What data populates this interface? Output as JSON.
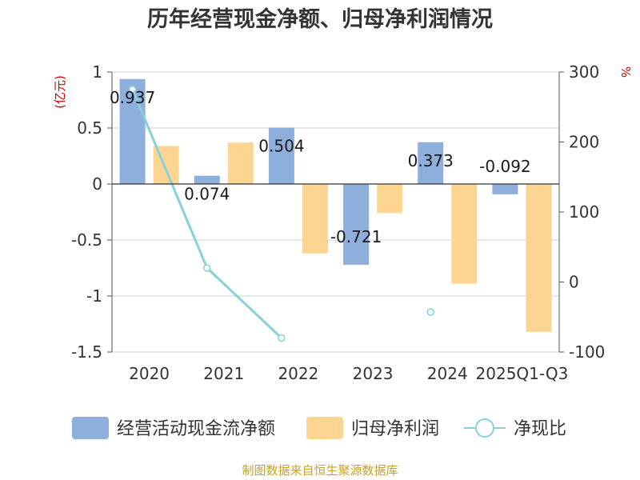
{
  "chart_data": {
    "type": "bar",
    "title": "历年经营现金净额、归母净利润情况",
    "categories": [
      "2020",
      "2021",
      "2022",
      "2023",
      "2024",
      "2025Q1-Q3"
    ],
    "series": [
      {
        "name": "经营活动现金流净额",
        "kind": "bar",
        "axis": "left",
        "color": "#8eafdc",
        "values": [
          0.937,
          0.074,
          0.504,
          -0.721,
          0.373,
          -0.092
        ],
        "labels": [
          "0.937",
          "0.074",
          "0.504",
          "-0.721",
          "0.373",
          "-0.092"
        ]
      },
      {
        "name": "归母净利润",
        "kind": "bar",
        "axis": "left",
        "color": "#fdd593",
        "values": [
          0.34,
          0.37,
          -0.62,
          -0.26,
          -0.89,
          -1.32
        ]
      },
      {
        "name": "净现比",
        "kind": "line",
        "axis": "right",
        "color": "#87d2d9",
        "values": [
          275,
          20,
          -80,
          null,
          -43,
          null
        ]
      }
    ],
    "left_axis": {
      "unit": "(亿元)",
      "range": [
        -1.5,
        1
      ],
      "ticks": [
        "1",
        "0.5",
        "0",
        "-0.5",
        "-1",
        "-1.5"
      ]
    },
    "right_axis": {
      "unit": "%",
      "range": [
        -100,
        300
      ],
      "ticks": [
        "300",
        "200",
        "100",
        "0",
        "-100"
      ]
    },
    "legend_position": "bottom",
    "grid": true,
    "source": "制图数据来自恒生聚源数据库"
  }
}
